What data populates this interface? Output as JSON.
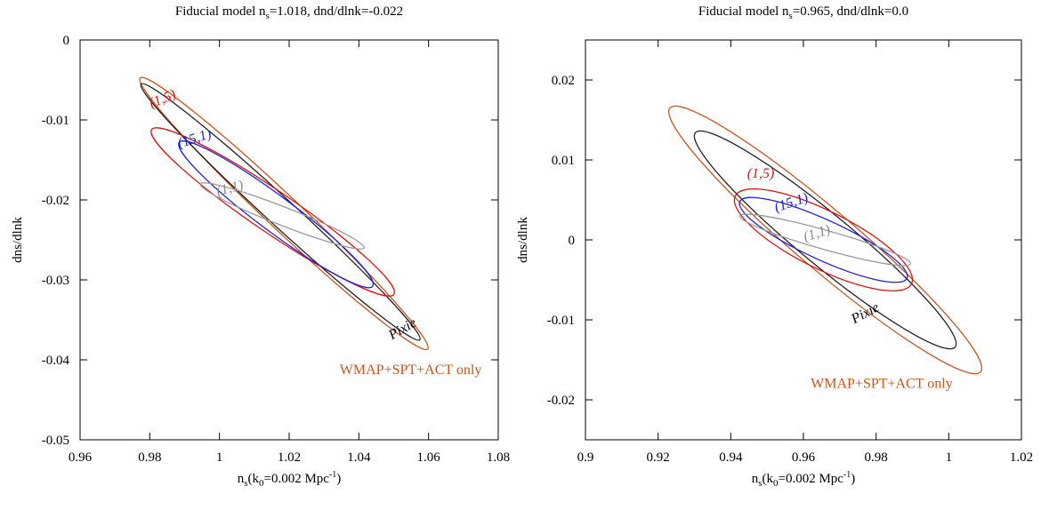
{
  "chart_data": [
    {
      "type": "contour",
      "title": {
        "prefix": "Fiducial model n",
        "sub": "s",
        "suffix": "=1.018, dnd/dlnk=-0.022"
      },
      "xlabel": {
        "prefix": "n",
        "sub1": "s",
        "mid": "(k",
        "sub2": "0",
        "mid2": "=0.002 Mpc",
        "sup": "-1",
        "suffix": ")"
      },
      "ylabel": "dns/dlnk",
      "xlim": [
        0.96,
        1.08
      ],
      "ylim": [
        -0.05,
        0
      ],
      "xticks": [
        0.96,
        0.98,
        1,
        1.02,
        1.04,
        1.06,
        1.08
      ],
      "xtick_labels": [
        "0.96",
        "0.98",
        "1",
        "1.02",
        "1.04",
        "1.06",
        "1.08"
      ],
      "yticks": [
        -0.05,
        -0.04,
        -0.03,
        -0.02,
        -0.01,
        0
      ],
      "ytick_labels": [
        "-0.05",
        "-0.04",
        "-0.03",
        "-0.02",
        "-0.01",
        "0"
      ],
      "ellipses": [
        {
          "name": "WMAP+SPT+ACT only",
          "color": "#c8541e",
          "center": [
            1.0185,
            -0.0217
          ],
          "end1": [
            0.9775,
            -0.0048
          ],
          "end2": [
            1.06,
            -0.0387
          ],
          "width": 0.0022
        },
        {
          "name": "Pixie",
          "color": "#222222",
          "center": [
            1.0175,
            -0.0215
          ],
          "end1": [
            0.9775,
            -0.0055
          ],
          "end2": [
            1.0575,
            -0.0375
          ],
          "width": 0.0018
        },
        {
          "name": "(1,5)",
          "color": "#e01010",
          "center": [
            1.0153,
            -0.0215
          ],
          "end1": [
            0.9805,
            -0.0112
          ],
          "end2": [
            1.05,
            -0.0318
          ],
          "width": 0.0027
        },
        {
          "name": "(15,1)",
          "color": "#2020d8",
          "center": [
            1.0162,
            -0.0218
          ],
          "end1": [
            0.9885,
            -0.0128
          ],
          "end2": [
            1.044,
            -0.0308
          ],
          "width": 0.0023
        },
        {
          "name": "(1,1)",
          "color": "#999999",
          "center": [
            1.018,
            -0.022
          ],
          "end1": [
            0.9945,
            -0.018
          ],
          "end2": [
            1.0415,
            -0.026
          ],
          "width": 0.0012
        }
      ],
      "labels": [
        {
          "text": "(1,5)",
          "color": "#e01010",
          "x": 0.9805,
          "y": -0.0085,
          "rotate": -22
        },
        {
          "text": "(15,1)",
          "color": "#2020d8",
          "x": 0.9885,
          "y": -0.0135,
          "rotate": -18
        },
        {
          "text": "(1,1)",
          "color": "#888888",
          "x": 0.9995,
          "y": -0.0195,
          "rotate": -15
        },
        {
          "text": "Pixie",
          "color": "#000000",
          "x": 1.0495,
          "y": -0.0375,
          "rotate": -30
        }
      ],
      "legend": {
        "text": "WMAP+SPT+ACT only",
        "color": "#c8541e",
        "x": 1.0345,
        "y": -0.0418
      }
    },
    {
      "type": "contour",
      "title": {
        "prefix": "Fiducial model n",
        "sub": "s",
        "suffix": "=0.965, dnd/dlnk=0.0"
      },
      "xlabel": {
        "prefix": "n",
        "sub1": "s",
        "mid": "(k",
        "sub2": "0",
        "mid2": "=0.002 Mpc",
        "sup": "-1",
        "suffix": ")"
      },
      "ylabel": "dns/dlnk",
      "xlim": [
        0.9,
        1.02
      ],
      "ylim": [
        -0.025,
        0.025
      ],
      "xticks": [
        0.9,
        0.92,
        0.94,
        0.96,
        0.98,
        1,
        1.02
      ],
      "xtick_labels": [
        "0.9",
        "0.92",
        "0.94",
        "0.96",
        "0.98",
        "1",
        "1.02"
      ],
      "yticks": [
        -0.02,
        -0.01,
        0,
        0.01,
        0.02
      ],
      "ytick_labels": [
        "-0.02",
        "-0.01",
        "0",
        "0.01",
        "0.02"
      ],
      "ellipses": [
        {
          "name": "WMAP+SPT+ACT only",
          "color": "#c8541e",
          "center": [
            0.966,
            0.0
          ],
          "end1": [
            0.9235,
            0.0165
          ],
          "end2": [
            1.009,
            -0.0165
          ],
          "width": 0.0037
        },
        {
          "name": "Pixie",
          "color": "#222222",
          "center": [
            0.966,
            0.0
          ],
          "end1": [
            0.93,
            0.0135
          ],
          "end2": [
            1.0015,
            -0.0133
          ],
          "width": 0.0032
        },
        {
          "name": "(1,5)",
          "color": "#e01010",
          "center": [
            0.9655,
            0.0
          ],
          "end1": [
            0.9415,
            0.0055
          ],
          "end2": [
            0.99,
            -0.0055
          ],
          "width": 0.0036
        },
        {
          "name": "(15,1)",
          "color": "#2020d8",
          "center": [
            0.9655,
            0.0
          ],
          "end1": [
            0.9425,
            0.0048
          ],
          "end2": [
            0.9885,
            -0.0048
          ],
          "width": 0.0025
        },
        {
          "name": "(1,1)",
          "color": "#999999",
          "center": [
            0.966,
            0.0
          ],
          "end1": [
            0.9425,
            0.003
          ],
          "end2": [
            0.9895,
            -0.003
          ],
          "width": 0.0012
        }
      ],
      "labels": [
        {
          "text": "(1,5)",
          "color": "#e01010",
          "x": 0.9445,
          "y": 0.0078,
          "rotate": 0
        },
        {
          "text": "(15,1)",
          "color": "#2020d8",
          "x": 0.9525,
          "y": 0.0035,
          "rotate": -18
        },
        {
          "text": "(1,1)",
          "color": "#888888",
          "x": 0.9605,
          "y": -0.0002,
          "rotate": -18
        },
        {
          "text": "Pixie",
          "color": "#000000",
          "x": 0.974,
          "y": -0.0105,
          "rotate": -28
        }
      ],
      "legend": {
        "text": "WMAP+SPT+ACT only",
        "color": "#c8541e",
        "x": 0.962,
        "y": -0.0185
      }
    }
  ]
}
